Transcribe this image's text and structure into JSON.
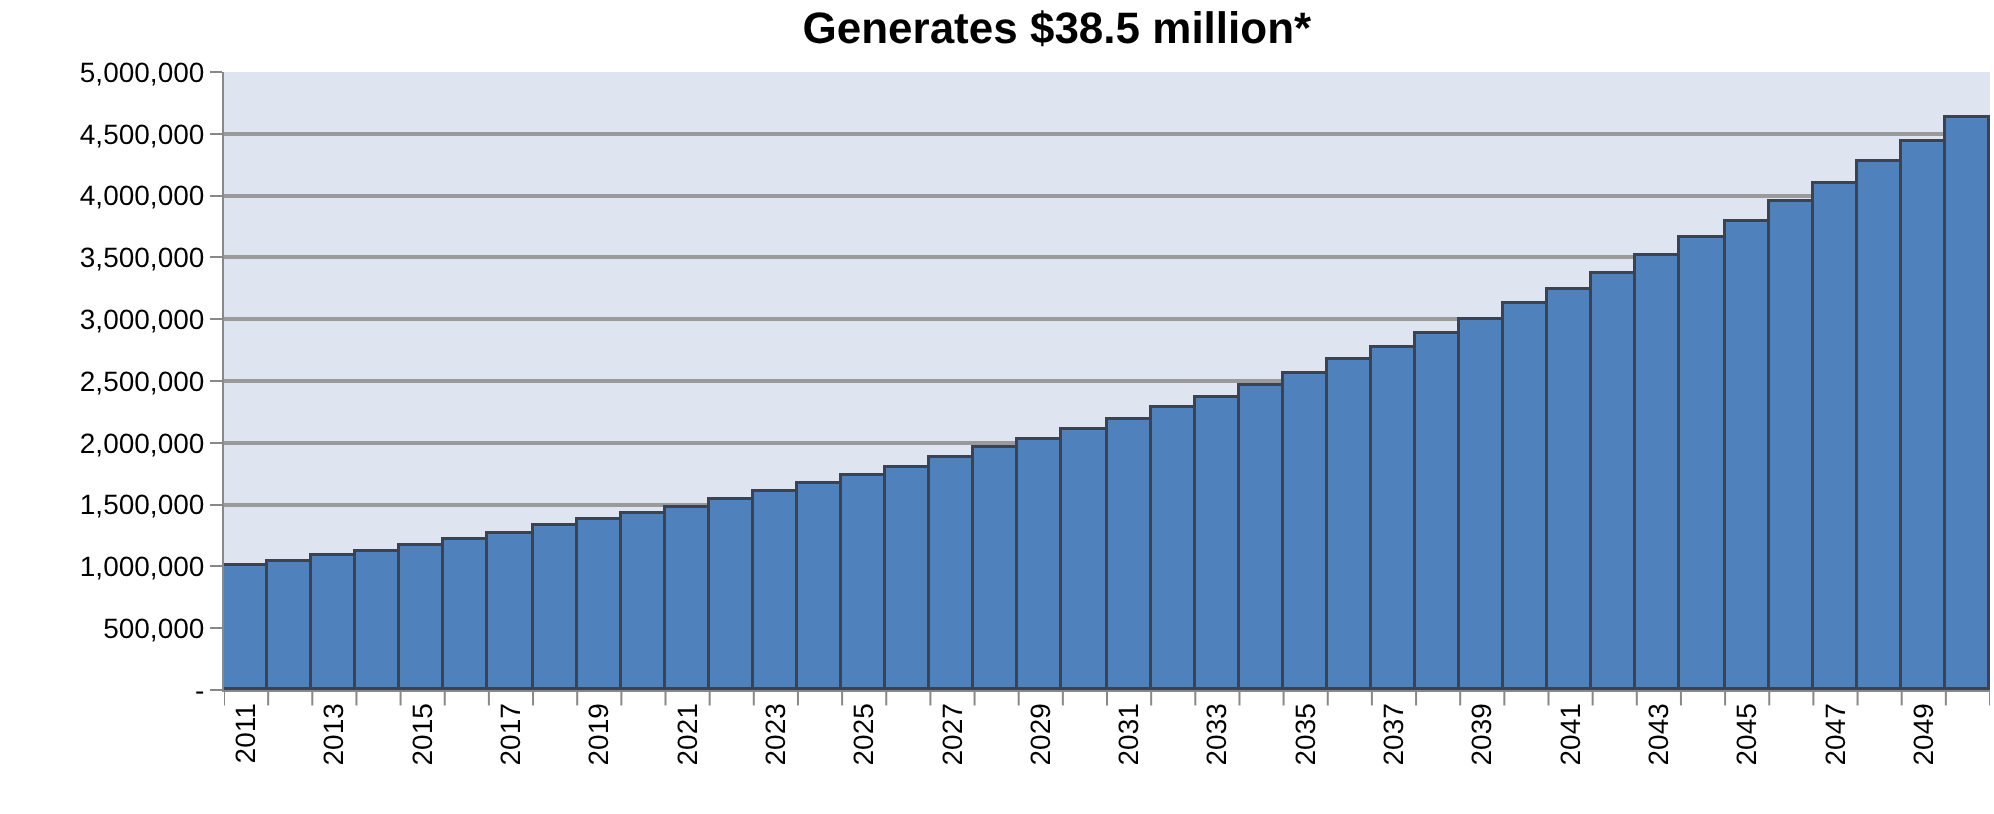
{
  "chart_data": {
    "type": "bar",
    "title": "Generates $38.5 million*",
    "categories": [
      "2011",
      null,
      "2013",
      null,
      "2015",
      null,
      "2017",
      null,
      "2019",
      null,
      "2021",
      null,
      "2023",
      null,
      "2025",
      null,
      "2027",
      null,
      "2029",
      null,
      "2031",
      null,
      "2033",
      null,
      "2035",
      null,
      "2037",
      null,
      "2039",
      null,
      "2041",
      null,
      "2043",
      null,
      "2045",
      null,
      "2047",
      null,
      "2049",
      null
    ],
    "values": [
      1000000,
      1040000,
      1080000,
      1120000,
      1170000,
      1220000,
      1270000,
      1320000,
      1370000,
      1420000,
      1480000,
      1540000,
      1600000,
      1670000,
      1730000,
      1800000,
      1870000,
      1950000,
      2030000,
      2110000,
      2190000,
      2280000,
      2370000,
      2460000,
      2560000,
      2670000,
      2770000,
      2880000,
      3000000,
      3120000,
      3240000,
      3370000,
      3510000,
      3650000,
      3790000,
      3950000,
      4100000,
      4270000,
      4440000,
      4620000
    ],
    "color": "#4f81bd",
    "ylim": [
      0,
      5000000
    ],
    "yticks": [
      {
        "value": 0,
        "label": "-"
      },
      {
        "value": 500000,
        "label": "500,000"
      },
      {
        "value": 1000000,
        "label": "1,000,000"
      },
      {
        "value": 1500000,
        "label": "1,500,000"
      },
      {
        "value": 2000000,
        "label": "2,000,000"
      },
      {
        "value": 2500000,
        "label": "2,500,000"
      },
      {
        "value": 3000000,
        "label": "3,000,000"
      },
      {
        "value": 3500000,
        "label": "3,500,000"
      },
      {
        "value": 4000000,
        "label": "4,000,000"
      },
      {
        "value": 4500000,
        "label": "4,500,000"
      },
      {
        "value": 5000000,
        "label": "5,000,000"
      }
    ],
    "grid": "y"
  }
}
